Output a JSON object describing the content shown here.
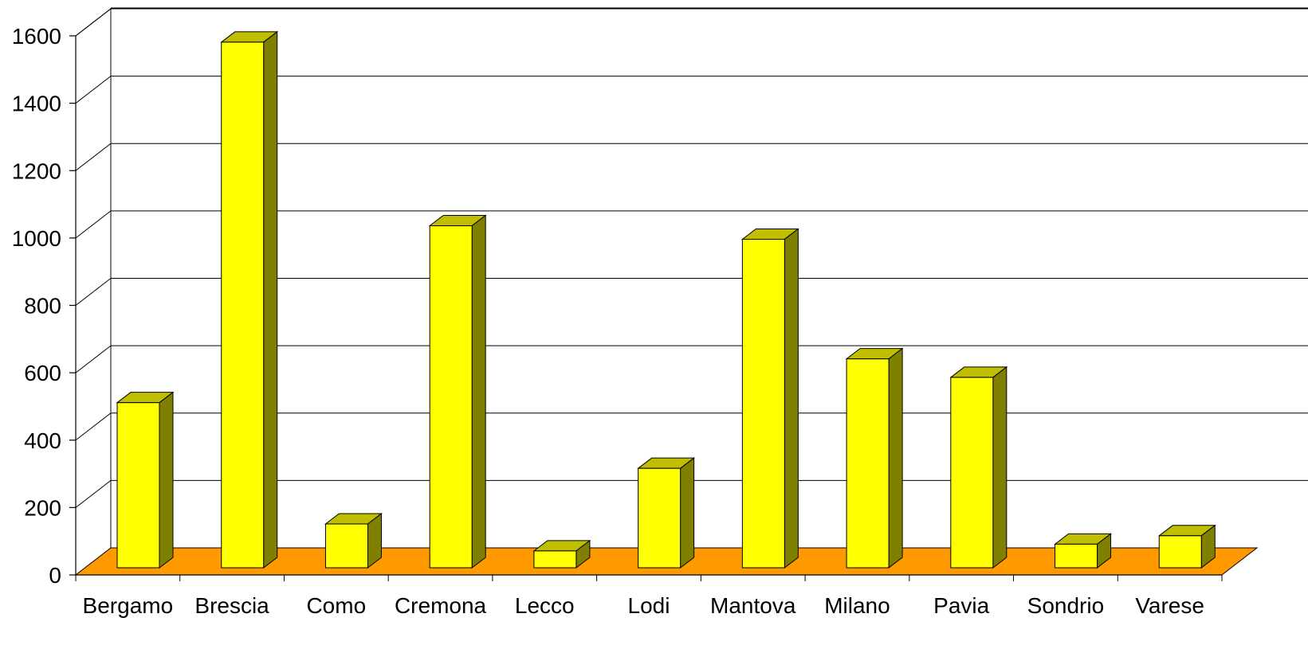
{
  "chart_data": {
    "type": "bar",
    "style": "3d-column",
    "categories": [
      "Bergamo",
      "Brescia",
      "Como",
      "Cremona",
      "Lecco",
      "Lodi",
      "Mantova",
      "Milano",
      "Pavia",
      "Sondrio",
      "Varese"
    ],
    "values": [
      490,
      1560,
      130,
      1015,
      50,
      295,
      975,
      620,
      565,
      70,
      95
    ],
    "ylim": [
      0,
      1600
    ],
    "yticks": [
      0,
      200,
      400,
      600,
      800,
      1000,
      1200,
      1400,
      1600
    ],
    "grid": true,
    "colors": {
      "bar_front": "#FFFF00",
      "bar_top": "#BFBF00",
      "bar_side": "#808000",
      "floor": "#FF9900",
      "outline": "#000000"
    }
  }
}
